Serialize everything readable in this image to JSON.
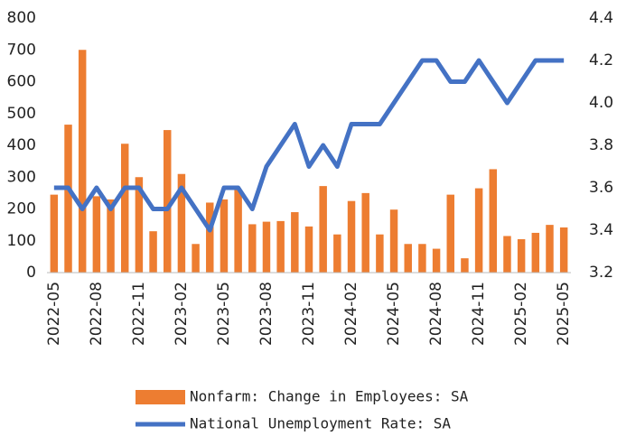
{
  "chart_data": {
    "type": "bar_line",
    "categories": [
      "2022-05",
      null,
      null,
      "2022-08",
      null,
      null,
      "2022-11",
      null,
      null,
      "2023-02",
      null,
      null,
      "2023-05",
      null,
      null,
      "2023-08",
      null,
      null,
      "2023-11",
      null,
      null,
      "2024-02",
      null,
      null,
      "2024-05",
      null,
      null,
      "2024-08",
      null,
      null,
      "2024-11",
      null,
      null,
      "2025-02",
      null,
      null,
      "2025-05"
    ],
    "series": [
      {
        "name": "Nonfarm: Change in Employees: SA",
        "type": "bar",
        "color": "#ED7D31",
        "axis": "y",
        "values": [
          245,
          465,
          700,
          240,
          230,
          405,
          300,
          130,
          448,
          310,
          90,
          220,
          230,
          260,
          152,
          160,
          162,
          190,
          145,
          272,
          120,
          225,
          250,
          120,
          198,
          90,
          90,
          75,
          245,
          45,
          265,
          325,
          115,
          105,
          125,
          150,
          142
        ]
      },
      {
        "name": "National Unemployment Rate: SA",
        "type": "line",
        "color": "#4472C4",
        "axis": "y2",
        "values": [
          3.6,
          3.6,
          3.5,
          3.6,
          3.5,
          3.6,
          3.6,
          3.5,
          3.5,
          3.6,
          3.5,
          3.4,
          3.6,
          3.6,
          3.5,
          3.7,
          3.8,
          3.9,
          3.7,
          3.8,
          3.7,
          3.9,
          3.9,
          3.9,
          4.0,
          4.1,
          4.2,
          4.2,
          4.1,
          4.1,
          4.2,
          4.1,
          4.0,
          4.1,
          4.2,
          4.2,
          4.2
        ]
      }
    ],
    "ylim": [
      0,
      800
    ],
    "yticks": [
      0,
      100,
      200,
      300,
      400,
      500,
      600,
      700,
      800
    ],
    "y2lim": [
      3.2,
      4.4
    ],
    "y2ticks": [
      3.2,
      3.4,
      3.6,
      3.8,
      {
        "value": 4,
        "label": "4.0"
      },
      4.2,
      4.4
    ],
    "grid": false,
    "legend": "bottom"
  }
}
